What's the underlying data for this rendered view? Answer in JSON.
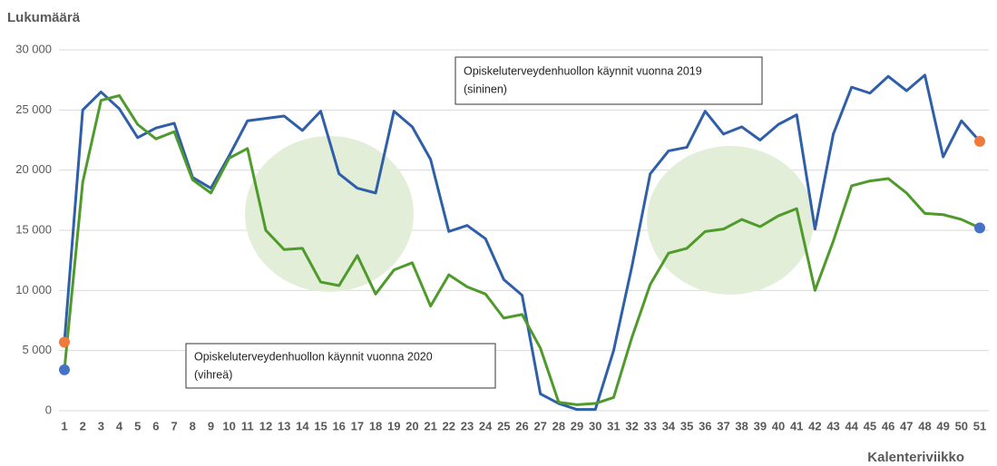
{
  "chart_data": {
    "type": "line",
    "title": "Lukumäärä",
    "x_label": "Kalenteriviikko",
    "categories": [
      "1",
      "2",
      "3",
      "4",
      "5",
      "6",
      "7",
      "8",
      "9",
      "10",
      "11",
      "12",
      "13",
      "14",
      "15",
      "16",
      "17",
      "18",
      "19",
      "20",
      "21",
      "22",
      "23",
      "24",
      "25",
      "26",
      "27",
      "28",
      "29",
      "30",
      "31",
      "32",
      "33",
      "34",
      "35",
      "36",
      "37",
      "38",
      "39",
      "40",
      "41",
      "42",
      "43",
      "44",
      "45",
      "46",
      "47",
      "48",
      "49",
      "50",
      "51"
    ],
    "series": [
      {
        "color": "#2e5fa8",
        "endpoint_color": "#ee7a3b",
        "values": [
          5700,
          25000,
          26500,
          25100,
          22700,
          23500,
          23900,
          19400,
          18500,
          21200,
          24100,
          24300,
          24500,
          23300,
          24900,
          19700,
          18500,
          18100,
          24900,
          23600,
          20900,
          14900,
          15400,
          14300,
          10900,
          9600,
          1400,
          600,
          100,
          100,
          5000,
          12000,
          19700,
          21600,
          21900,
          24900,
          23000,
          23600,
          22500,
          23800,
          24600,
          15100,
          23000,
          26900,
          26400,
          27800,
          26600,
          27900,
          21100,
          24100,
          22400
        ]
      },
      {
        "color": "#4e9a2a",
        "endpoint_color": "#4472c4",
        "values": [
          3400,
          19000,
          25800,
          26200,
          23800,
          22600,
          23200,
          19200,
          18100,
          21000,
          21800,
          15000,
          13400,
          13500,
          10700,
          10400,
          12900,
          9700,
          11700,
          12300,
          8700,
          11300,
          10300,
          9700,
          7700,
          8000,
          5200,
          700,
          500,
          600,
          1100,
          6100,
          10500,
          13100,
          13500,
          14900,
          15100,
          15900,
          15300,
          16200,
          16800,
          10000,
          14100,
          18700,
          19100,
          19300,
          18100,
          16400,
          16300,
          15900,
          15200
        ]
      }
    ],
    "annotations": [
      {
        "lines": [
          "Opiskeluterveydenhuollon käynnit vuonna 2019",
          "(sininen)"
        ]
      },
      {
        "lines": [
          "Opiskeluterveydenhuollon käynnit vuonna 2020",
          "(vihreä)"
        ]
      }
    ],
    "ylim": [
      0,
      30000
    ],
    "yticks": [
      0,
      {
        "value": 5000,
        "label": "5 000"
      },
      {
        "value": 10000,
        "label": "10 000"
      },
      {
        "value": 15000,
        "label": "15 000"
      },
      {
        "value": 20000,
        "label": "20 000"
      },
      {
        "value": 25000,
        "label": "25 000"
      },
      {
        "value": 30000,
        "label": "30 000"
      }
    ],
    "grid": true
  }
}
